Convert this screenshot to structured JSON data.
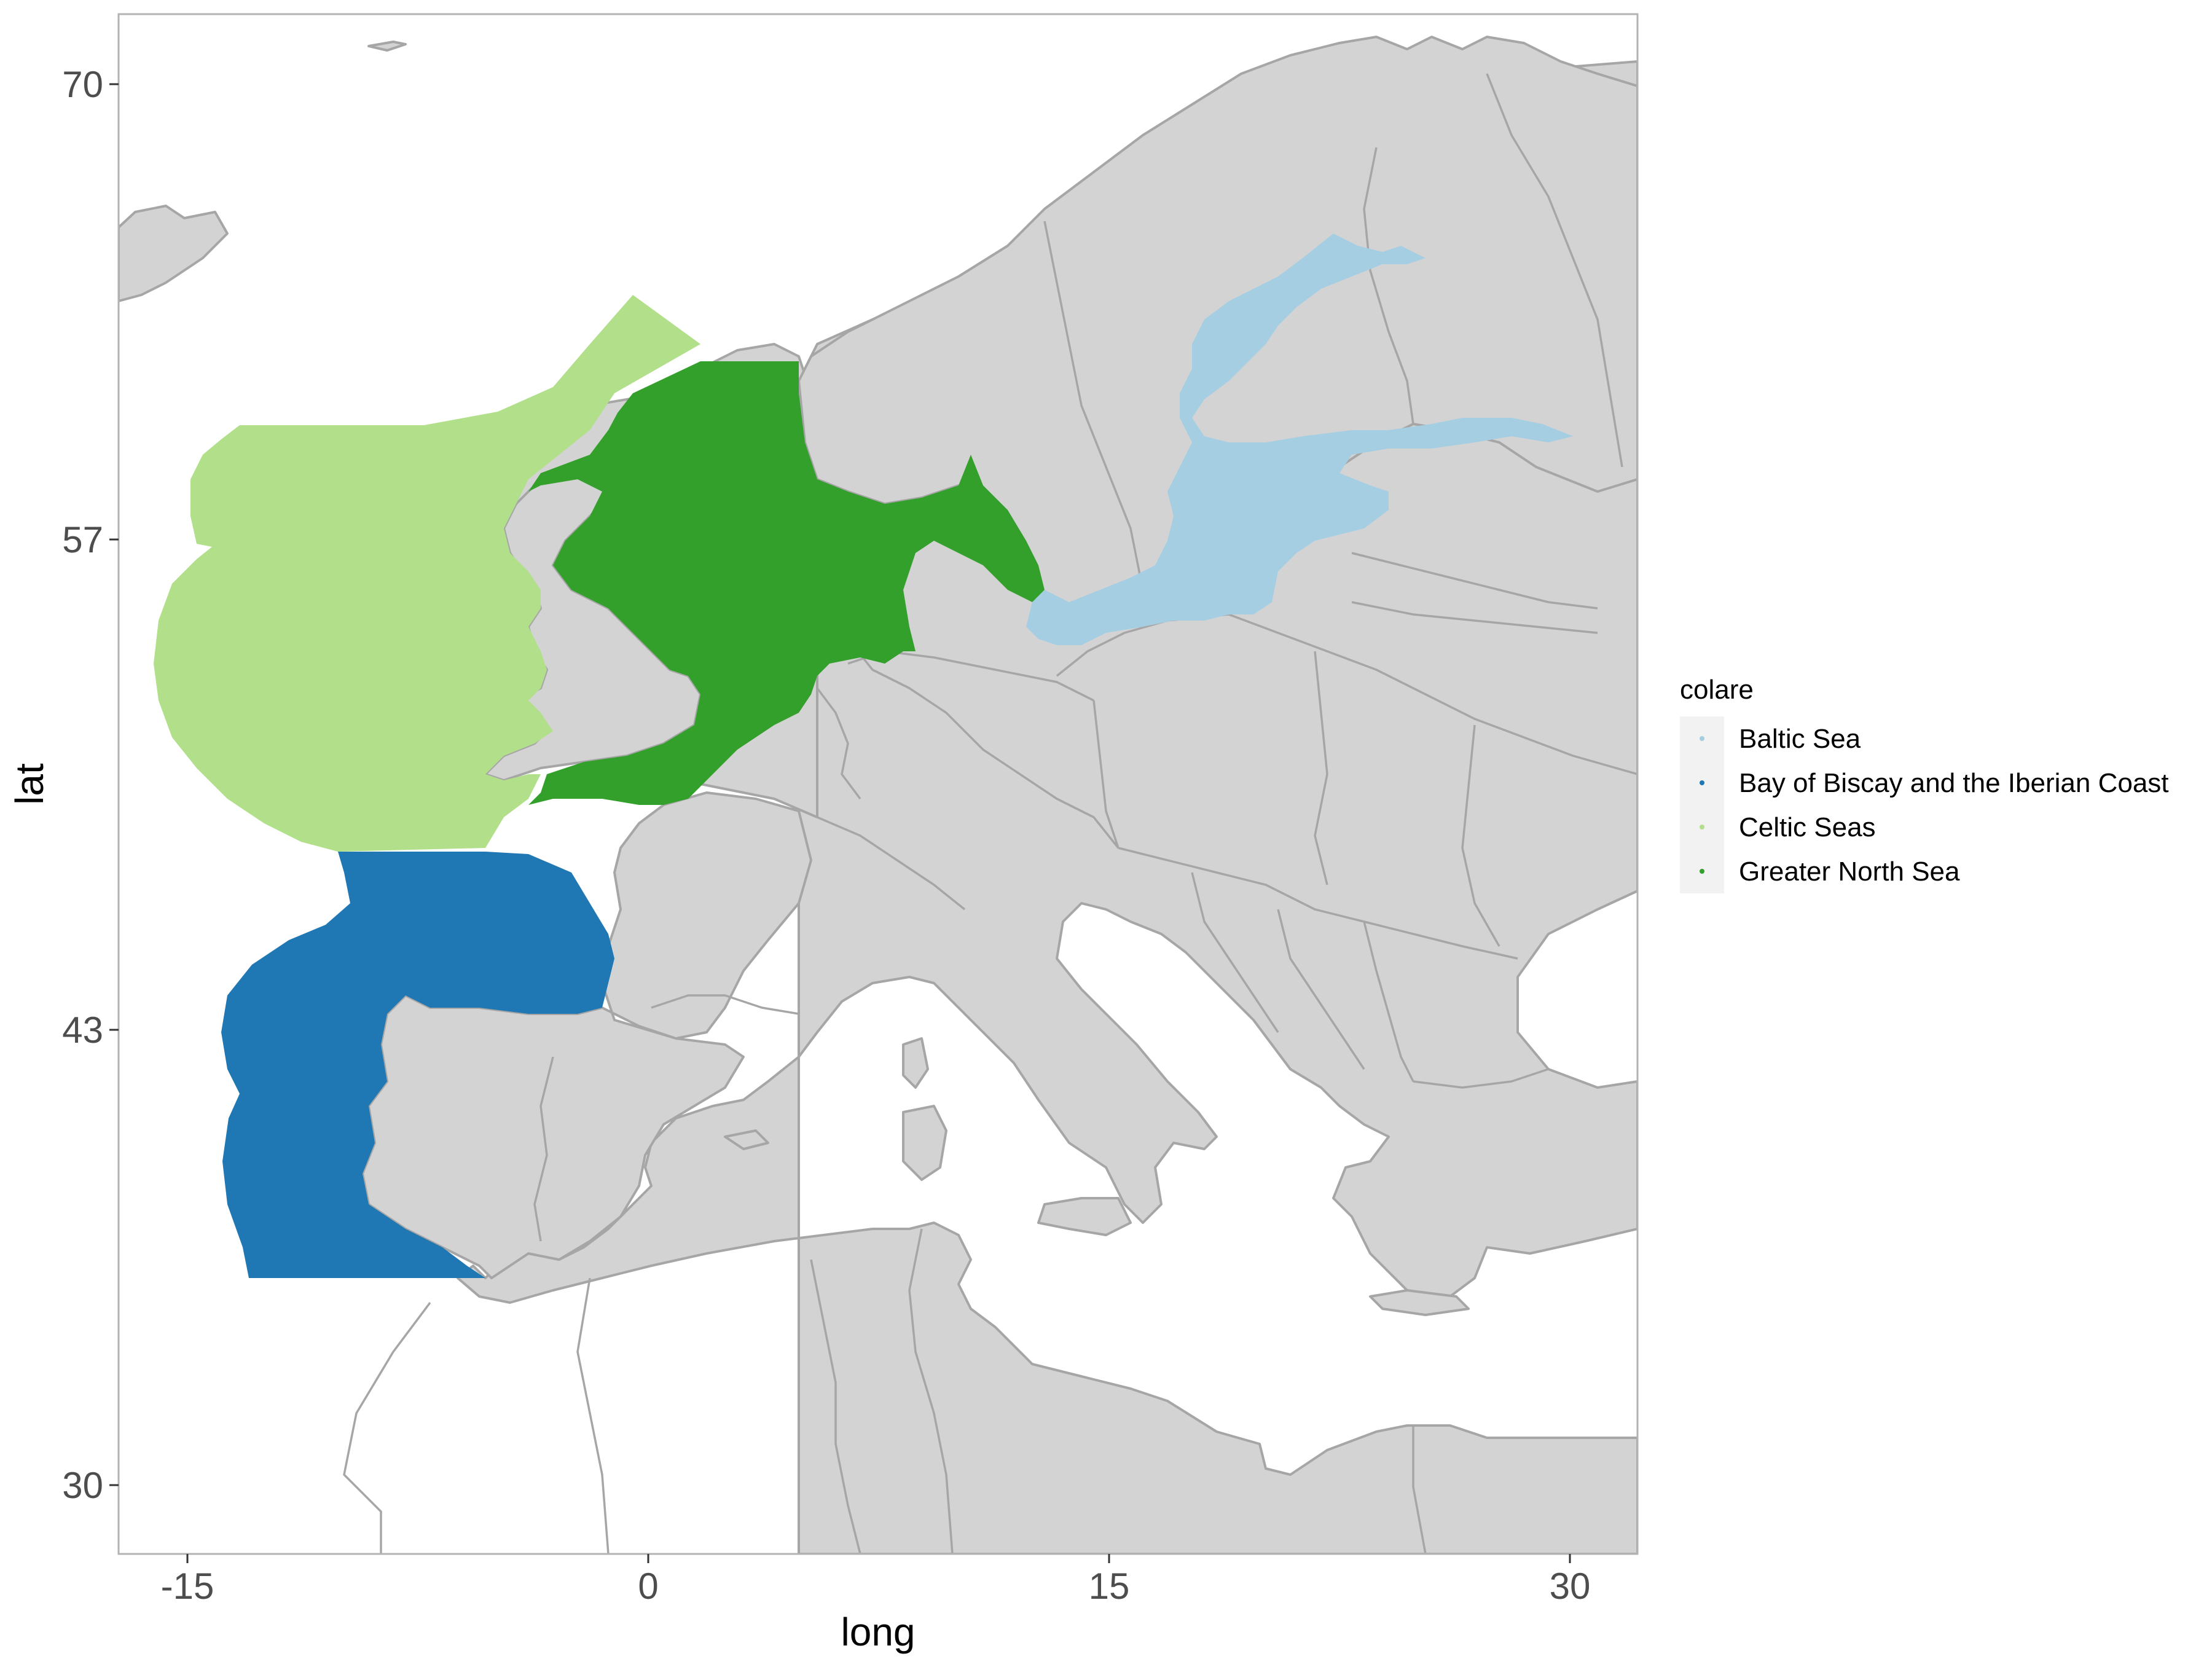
{
  "map": {
    "x_label": "long",
    "y_label": "lat",
    "x_ticks": [
      "-15",
      "0",
      "15",
      "30"
    ],
    "y_ticks": [
      "70",
      "57",
      "43",
      "30"
    ],
    "land_color": "#d3d3d3",
    "border_color": "#a6a6a6",
    "sea_color": "#ffffff"
  },
  "legend": {
    "title": "colare",
    "items": [
      {
        "label": "Baltic Sea",
        "color": "#a6cee3"
      },
      {
        "label": "Bay of Biscay and the Iberian Coast",
        "color": "#1f78b4"
      },
      {
        "label": "Celtic Seas",
        "color": "#b2df8a"
      },
      {
        "label": "Greater North Sea",
        "color": "#33a02c"
      }
    ]
  }
}
